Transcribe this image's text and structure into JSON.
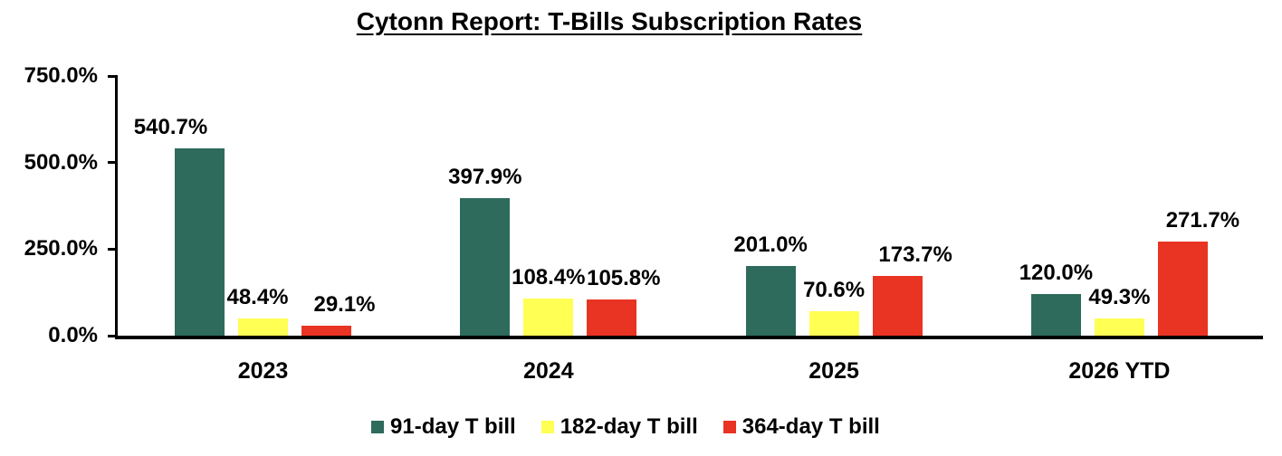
{
  "chart_data": {
    "type": "bar",
    "title": "Cytonn Report: T-Bills Subscription Rates",
    "categories": [
      "2023",
      "2024",
      "2025",
      "2026 YTD"
    ],
    "series": [
      {
        "name": "91-day T bill",
        "color": "#2E6B5C",
        "values": [
          540.7,
          397.9,
          201.0,
          120.0
        ],
        "labels": [
          "540.7%",
          "397.9%",
          "201.0%",
          "120.0%"
        ]
      },
      {
        "name": "182-day T bill",
        "color": "#FFFF54",
        "values": [
          48.4,
          108.4,
          70.6,
          49.3
        ],
        "labels": [
          "48.4%",
          "108.4%",
          "70.6%",
          "49.3%"
        ]
      },
      {
        "name": "364-day T bill",
        "color": "#E93323",
        "values": [
          29.1,
          105.8,
          173.7,
          271.7
        ],
        "labels": [
          "29.1%",
          "105.8%",
          "173.7%",
          "271.7%"
        ]
      }
    ],
    "y_axis": {
      "min": 0,
      "max": 750,
      "tick_values": [
        0,
        250,
        500,
        750
      ],
      "tick_labels": [
        "0.0%",
        "250.0%",
        "500.0%",
        "750.0%"
      ]
    },
    "legend_position": "bottom",
    "grid": false,
    "text_color": "#000000",
    "axis_color": "#000000",
    "background_color": "#FFFFFF"
  }
}
